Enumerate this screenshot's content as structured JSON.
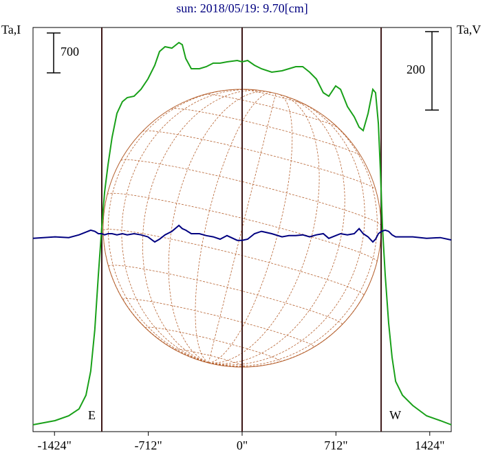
{
  "chart_data": {
    "type": "line",
    "title": "sun: 2018/05/19: 9.70[cm]",
    "y_label": "Ta,I",
    "y2_label": "Ta,V",
    "x": [
      -1587,
      -1420,
      -1316,
      -1238,
      -1185,
      -1149,
      -1118,
      -1091,
      -1065,
      -1044,
      -1018,
      -987,
      -950,
      -909,
      -872,
      -820,
      -768,
      -715,
      -663,
      -627,
      -585,
      -533,
      -480,
      -454,
      -428,
      -386,
      -324,
      -272,
      -219,
      -167,
      -115,
      -37,
      0,
      42,
      94,
      146,
      225,
      303,
      355,
      407,
      460,
      512,
      564,
      616,
      658,
      710,
      747,
      799,
      851,
      888,
      919,
      956,
      992,
      1013,
      1034,
      1050,
      1065,
      1086,
      1112,
      1138,
      1165,
      1217,
      1295,
      1400,
      1504,
      1587
    ],
    "series": [
      {
        "name": "Ta,I",
        "color": "#18a018",
        "axis": "y",
        "values": [
          121,
          193,
          278,
          398,
          640,
          1062,
          1786,
          2752,
          3597,
          4200,
          4683,
          5166,
          5588,
          5794,
          5866,
          5890,
          6011,
          6192,
          6433,
          6675,
          6759,
          6735,
          6832,
          6795,
          6554,
          6373,
          6373,
          6409,
          6470,
          6470,
          6494,
          6518,
          6494,
          6518,
          6433,
          6373,
          6313,
          6337,
          6373,
          6409,
          6409,
          6313,
          6192,
          5951,
          5890,
          6071,
          6011,
          5709,
          5528,
          5347,
          5287,
          5588,
          6011,
          5951,
          5407,
          4562,
          3597,
          2752,
          1907,
          1304,
          881,
          640,
          459,
          278,
          193,
          121
        ]
      },
      {
        "name": "Ta,V",
        "color": "#000080",
        "axis": "y2",
        "values": [
          0,
          4,
          2,
          9,
          16,
          21,
          18,
          12,
          12,
          9,
          12,
          12,
          9,
          12,
          9,
          12,
          9,
          4,
          -9,
          -2,
          9,
          18,
          33,
          25,
          21,
          12,
          12,
          7,
          4,
          -2,
          7,
          -5,
          -5,
          -2,
          12,
          18,
          12,
          4,
          7,
          7,
          9,
          4,
          9,
          12,
          0,
          7,
          12,
          9,
          12,
          25,
          12,
          4,
          -9,
          -2,
          12,
          16,
          19,
          21,
          18,
          9,
          4,
          4,
          4,
          0,
          2,
          -4
        ]
      }
    ],
    "xlim": [
      -1587,
      1587
    ],
    "xticks": [
      {
        "value": -1424,
        "label": "-1424\""
      },
      {
        "value": -712,
        "label": "-712\""
      },
      {
        "value": 0,
        "label": "0\""
      },
      {
        "value": 712,
        "label": "712\""
      },
      {
        "value": 1424,
        "label": "1424\""
      }
    ],
    "ylim": [
      0,
      7097
    ],
    "y2lim": [
      -493,
      538
    ],
    "scale_bars": [
      {
        "value": 700,
        "axis": "y"
      },
      {
        "value": 200,
        "axis": "y2"
      }
    ],
    "vlines": [
      -1065,
      0,
      1055
    ],
    "vline_color": "#3a1414",
    "limb_labels": [
      "E",
      "W"
    ],
    "disk_radius": 1055,
    "disk_color": "#b5602e"
  }
}
